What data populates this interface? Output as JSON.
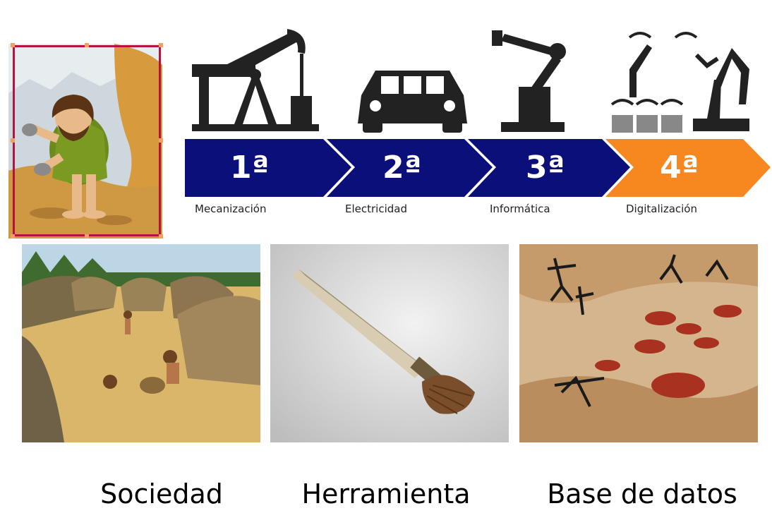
{
  "timeline": {
    "stages": [
      {
        "number": "1ª",
        "label": "Mecanización",
        "icon": "oil-pump-icon",
        "color": "#0b0f7a"
      },
      {
        "number": "2ª",
        "label": "Electricidad",
        "icon": "car-icon",
        "color": "#0b0f7a"
      },
      {
        "number": "3ª",
        "label": "Informática",
        "icon": "robot-arm-icon",
        "color": "#0b0f7a"
      },
      {
        "number": "4ª",
        "label": "Digitalización",
        "icon": "connected-robots-icon",
        "color": "#f7881f"
      }
    ]
  },
  "photos": [
    {
      "caption": "Sociedad",
      "subject": "prehistoric-village"
    },
    {
      "caption": "Herramienta",
      "subject": "primitive-brush"
    },
    {
      "caption": "Base de datos",
      "subject": "cave-painting"
    }
  ],
  "colors": {
    "selection": "#b5123f",
    "chevron_blue": "#0b0f7a",
    "chevron_orange": "#f7881f"
  }
}
